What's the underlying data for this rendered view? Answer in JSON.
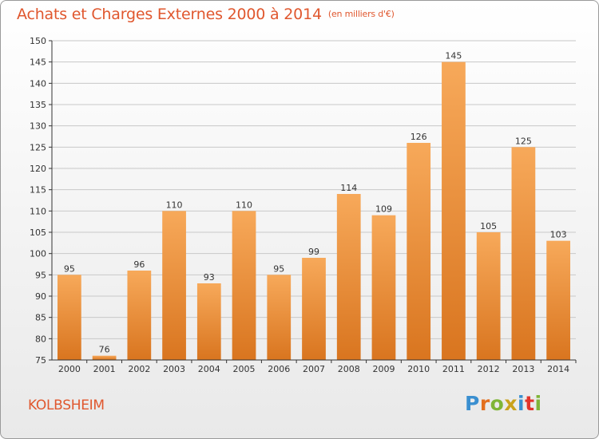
{
  "header": {
    "title": "Achats et Charges Externes 2000 à 2014",
    "subtitle": "(en milliers d'€)"
  },
  "footer": {
    "city": "KOLBSHEIM",
    "logo_text": "Proxiti",
    "logo_colors": [
      "#3a8fd0",
      "#e36f1e",
      "#7fb537",
      "#c9a21c",
      "#3a8fd0",
      "#e2342b",
      "#7fb537"
    ]
  },
  "colors": {
    "accent": "#e0572e",
    "bar_top": "#f7a95a",
    "bar_bottom": "#d9751f",
    "axis": "#333333",
    "grid": "#c8c8c8"
  },
  "chart_data": {
    "type": "bar",
    "title": "Achats et Charges Externes 2000 à 2014",
    "subtitle": "(en milliers d'€)",
    "categories": [
      "2000",
      "2001",
      "2002",
      "2003",
      "2004",
      "2005",
      "2006",
      "2007",
      "2008",
      "2009",
      "2010",
      "2011",
      "2012",
      "2013",
      "2014"
    ],
    "values": [
      95,
      76,
      96,
      110,
      93,
      110,
      95,
      99,
      114,
      109,
      126,
      145,
      105,
      125,
      103
    ],
    "data_labels": [
      "95",
      "76",
      "96",
      "110",
      "93",
      "110",
      "95",
      "99",
      "114",
      "109",
      "126",
      "145",
      "105",
      "125",
      "103"
    ],
    "ylim": [
      75,
      150
    ],
    "yticks": [
      75,
      80,
      85,
      90,
      95,
      100,
      105,
      110,
      115,
      120,
      125,
      130,
      135,
      140,
      145,
      150
    ],
    "xlabel": "",
    "ylabel": "",
    "grid": true
  }
}
